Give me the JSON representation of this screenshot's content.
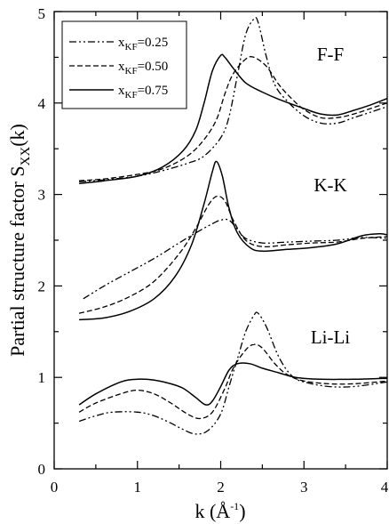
{
  "chart_data": {
    "type": "line",
    "xlabel": {
      "main": "k (",
      "unit": "Å",
      "exp": "-1",
      "close": ")"
    },
    "ylabel": {
      "main": "Partial structure factor S",
      "sub": "XX",
      "arg": "(k)"
    },
    "xlim": [
      0,
      4
    ],
    "ylim": [
      0,
      5
    ],
    "xticks": [
      0,
      1,
      2,
      3,
      4
    ],
    "xtick_labels": [
      "0",
      "1",
      "2",
      "3",
      "4"
    ],
    "yticks": [
      0,
      1,
      2,
      3,
      4,
      5
    ],
    "ytick_labels": [
      "0",
      "1",
      "2",
      "3",
      "4",
      "5"
    ],
    "grid": false,
    "legend_position": "top-left",
    "legend": [
      {
        "prefix": "x",
        "sub": "KF",
        "value": "=0.25",
        "style": "dash-dot-dot"
      },
      {
        "prefix": "x",
        "sub": "KF",
        "value": "=0.50",
        "style": "dashed"
      },
      {
        "prefix": "x",
        "sub": "KF",
        "value": "=0.75",
        "style": "solid"
      }
    ],
    "annotations": [
      {
        "text": "F-F",
        "x": 3.4,
        "y": 4.3
      },
      {
        "text": "K-K",
        "x": 3.4,
        "y": 3.1
      },
      {
        "text": "Li-Li",
        "x": 3.4,
        "y": 1.35
      }
    ],
    "series": [
      {
        "group": "F-F",
        "style": "dash-dot-dot",
        "points": [
          [
            0.3,
            3.14
          ],
          [
            0.6,
            3.16
          ],
          [
            1.0,
            3.2
          ],
          [
            1.3,
            3.26
          ],
          [
            1.6,
            3.34
          ],
          [
            1.8,
            3.42
          ],
          [
            2.0,
            3.62
          ],
          [
            2.1,
            3.85
          ],
          [
            2.2,
            4.3
          ],
          [
            2.3,
            4.75
          ],
          [
            2.4,
            4.92
          ],
          [
            2.45,
            4.88
          ],
          [
            2.55,
            4.5
          ],
          [
            2.65,
            4.2
          ],
          [
            2.8,
            4.02
          ],
          [
            3.0,
            3.86
          ],
          [
            3.2,
            3.78
          ],
          [
            3.4,
            3.78
          ],
          [
            3.6,
            3.84
          ],
          [
            3.8,
            3.9
          ],
          [
            4.0,
            3.96
          ]
        ]
      },
      {
        "group": "F-F",
        "style": "dashed",
        "points": [
          [
            0.3,
            3.15
          ],
          [
            0.6,
            3.17
          ],
          [
            1.0,
            3.22
          ],
          [
            1.3,
            3.28
          ],
          [
            1.6,
            3.42
          ],
          [
            1.8,
            3.6
          ],
          [
            1.95,
            3.82
          ],
          [
            2.05,
            4.1
          ],
          [
            2.15,
            4.32
          ],
          [
            2.3,
            4.48
          ],
          [
            2.4,
            4.5
          ],
          [
            2.55,
            4.4
          ],
          [
            2.7,
            4.2
          ],
          [
            2.85,
            4.05
          ],
          [
            3.0,
            3.93
          ],
          [
            3.2,
            3.84
          ],
          [
            3.4,
            3.84
          ],
          [
            3.6,
            3.88
          ],
          [
            3.8,
            3.94
          ],
          [
            4.0,
            4.0
          ]
        ]
      },
      {
        "group": "F-F",
        "style": "solid",
        "points": [
          [
            0.3,
            3.12
          ],
          [
            0.6,
            3.15
          ],
          [
            1.0,
            3.2
          ],
          [
            1.3,
            3.3
          ],
          [
            1.55,
            3.48
          ],
          [
            1.7,
            3.7
          ],
          [
            1.8,
            4.0
          ],
          [
            1.9,
            4.35
          ],
          [
            2.0,
            4.52
          ],
          [
            2.05,
            4.5
          ],
          [
            2.15,
            4.38
          ],
          [
            2.3,
            4.22
          ],
          [
            2.5,
            4.12
          ],
          [
            2.7,
            4.04
          ],
          [
            3.0,
            3.94
          ],
          [
            3.2,
            3.88
          ],
          [
            3.4,
            3.87
          ],
          [
            3.6,
            3.92
          ],
          [
            3.8,
            3.98
          ],
          [
            4.0,
            4.05
          ]
        ]
      },
      {
        "group": "K-K",
        "style": "dash-dot-dot",
        "points": [
          [
            0.35,
            1.86
          ],
          [
            0.6,
            2.0
          ],
          [
            0.9,
            2.15
          ],
          [
            1.2,
            2.3
          ],
          [
            1.5,
            2.47
          ],
          [
            1.7,
            2.58
          ],
          [
            1.9,
            2.68
          ],
          [
            2.0,
            2.72
          ],
          [
            2.1,
            2.72
          ],
          [
            2.2,
            2.62
          ],
          [
            2.3,
            2.52
          ],
          [
            2.5,
            2.47
          ],
          [
            2.8,
            2.48
          ],
          [
            3.1,
            2.49
          ],
          [
            3.4,
            2.5
          ],
          [
            3.7,
            2.53
          ],
          [
            4.0,
            2.52
          ]
        ]
      },
      {
        "group": "K-K",
        "style": "dashed",
        "points": [
          [
            0.3,
            1.7
          ],
          [
            0.6,
            1.77
          ],
          [
            0.9,
            1.88
          ],
          [
            1.2,
            2.05
          ],
          [
            1.5,
            2.35
          ],
          [
            1.7,
            2.63
          ],
          [
            1.85,
            2.88
          ],
          [
            1.95,
            2.98
          ],
          [
            2.05,
            2.93
          ],
          [
            2.15,
            2.72
          ],
          [
            2.3,
            2.5
          ],
          [
            2.5,
            2.43
          ],
          [
            2.8,
            2.45
          ],
          [
            3.1,
            2.47
          ],
          [
            3.4,
            2.48
          ],
          [
            3.7,
            2.52
          ],
          [
            4.0,
            2.54
          ]
        ]
      },
      {
        "group": "K-K",
        "style": "solid",
        "points": [
          [
            0.3,
            1.63
          ],
          [
            0.6,
            1.65
          ],
          [
            0.9,
            1.72
          ],
          [
            1.2,
            1.86
          ],
          [
            1.45,
            2.1
          ],
          [
            1.65,
            2.45
          ],
          [
            1.8,
            2.9
          ],
          [
            1.9,
            3.25
          ],
          [
            1.95,
            3.36
          ],
          [
            2.02,
            3.2
          ],
          [
            2.1,
            2.85
          ],
          [
            2.2,
            2.58
          ],
          [
            2.35,
            2.42
          ],
          [
            2.5,
            2.38
          ],
          [
            2.8,
            2.4
          ],
          [
            3.1,
            2.42
          ],
          [
            3.4,
            2.46
          ],
          [
            3.7,
            2.55
          ],
          [
            3.9,
            2.57
          ],
          [
            4.0,
            2.56
          ]
        ]
      },
      {
        "group": "Li-Li",
        "style": "dash-dot-dot",
        "points": [
          [
            0.3,
            0.52
          ],
          [
            0.5,
            0.58
          ],
          [
            0.7,
            0.62
          ],
          [
            1.0,
            0.62
          ],
          [
            1.2,
            0.58
          ],
          [
            1.4,
            0.5
          ],
          [
            1.55,
            0.43
          ],
          [
            1.7,
            0.38
          ],
          [
            1.85,
            0.42
          ],
          [
            2.0,
            0.6
          ],
          [
            2.1,
            0.9
          ],
          [
            2.2,
            1.2
          ],
          [
            2.3,
            1.5
          ],
          [
            2.4,
            1.68
          ],
          [
            2.45,
            1.7
          ],
          [
            2.55,
            1.55
          ],
          [
            2.7,
            1.22
          ],
          [
            2.85,
            1.02
          ],
          [
            3.0,
            0.95
          ],
          [
            3.3,
            0.9
          ],
          [
            3.6,
            0.9
          ],
          [
            4.0,
            0.95
          ]
        ]
      },
      {
        "group": "Li-Li",
        "style": "dashed",
        "points": [
          [
            0.3,
            0.62
          ],
          [
            0.5,
            0.72
          ],
          [
            0.8,
            0.82
          ],
          [
            1.0,
            0.86
          ],
          [
            1.2,
            0.82
          ],
          [
            1.4,
            0.72
          ],
          [
            1.6,
            0.6
          ],
          [
            1.75,
            0.55
          ],
          [
            1.9,
            0.62
          ],
          [
            2.05,
            0.88
          ],
          [
            2.15,
            1.1
          ],
          [
            2.3,
            1.3
          ],
          [
            2.4,
            1.36
          ],
          [
            2.5,
            1.32
          ],
          [
            2.65,
            1.15
          ],
          [
            2.8,
            1.03
          ],
          [
            3.0,
            0.96
          ],
          [
            3.3,
            0.93
          ],
          [
            3.6,
            0.93
          ],
          [
            4.0,
            0.96
          ]
        ]
      },
      {
        "group": "Li-Li",
        "style": "solid",
        "points": [
          [
            0.3,
            0.7
          ],
          [
            0.5,
            0.82
          ],
          [
            0.8,
            0.95
          ],
          [
            1.0,
            0.98
          ],
          [
            1.2,
            0.97
          ],
          [
            1.4,
            0.93
          ],
          [
            1.55,
            0.88
          ],
          [
            1.7,
            0.78
          ],
          [
            1.82,
            0.7
          ],
          [
            1.9,
            0.74
          ],
          [
            2.0,
            0.9
          ],
          [
            2.1,
            1.08
          ],
          [
            2.2,
            1.15
          ],
          [
            2.35,
            1.15
          ],
          [
            2.5,
            1.1
          ],
          [
            2.7,
            1.05
          ],
          [
            2.9,
            1.0
          ],
          [
            3.2,
            0.98
          ],
          [
            3.6,
            0.98
          ],
          [
            4.0,
            0.99
          ]
        ]
      }
    ]
  }
}
